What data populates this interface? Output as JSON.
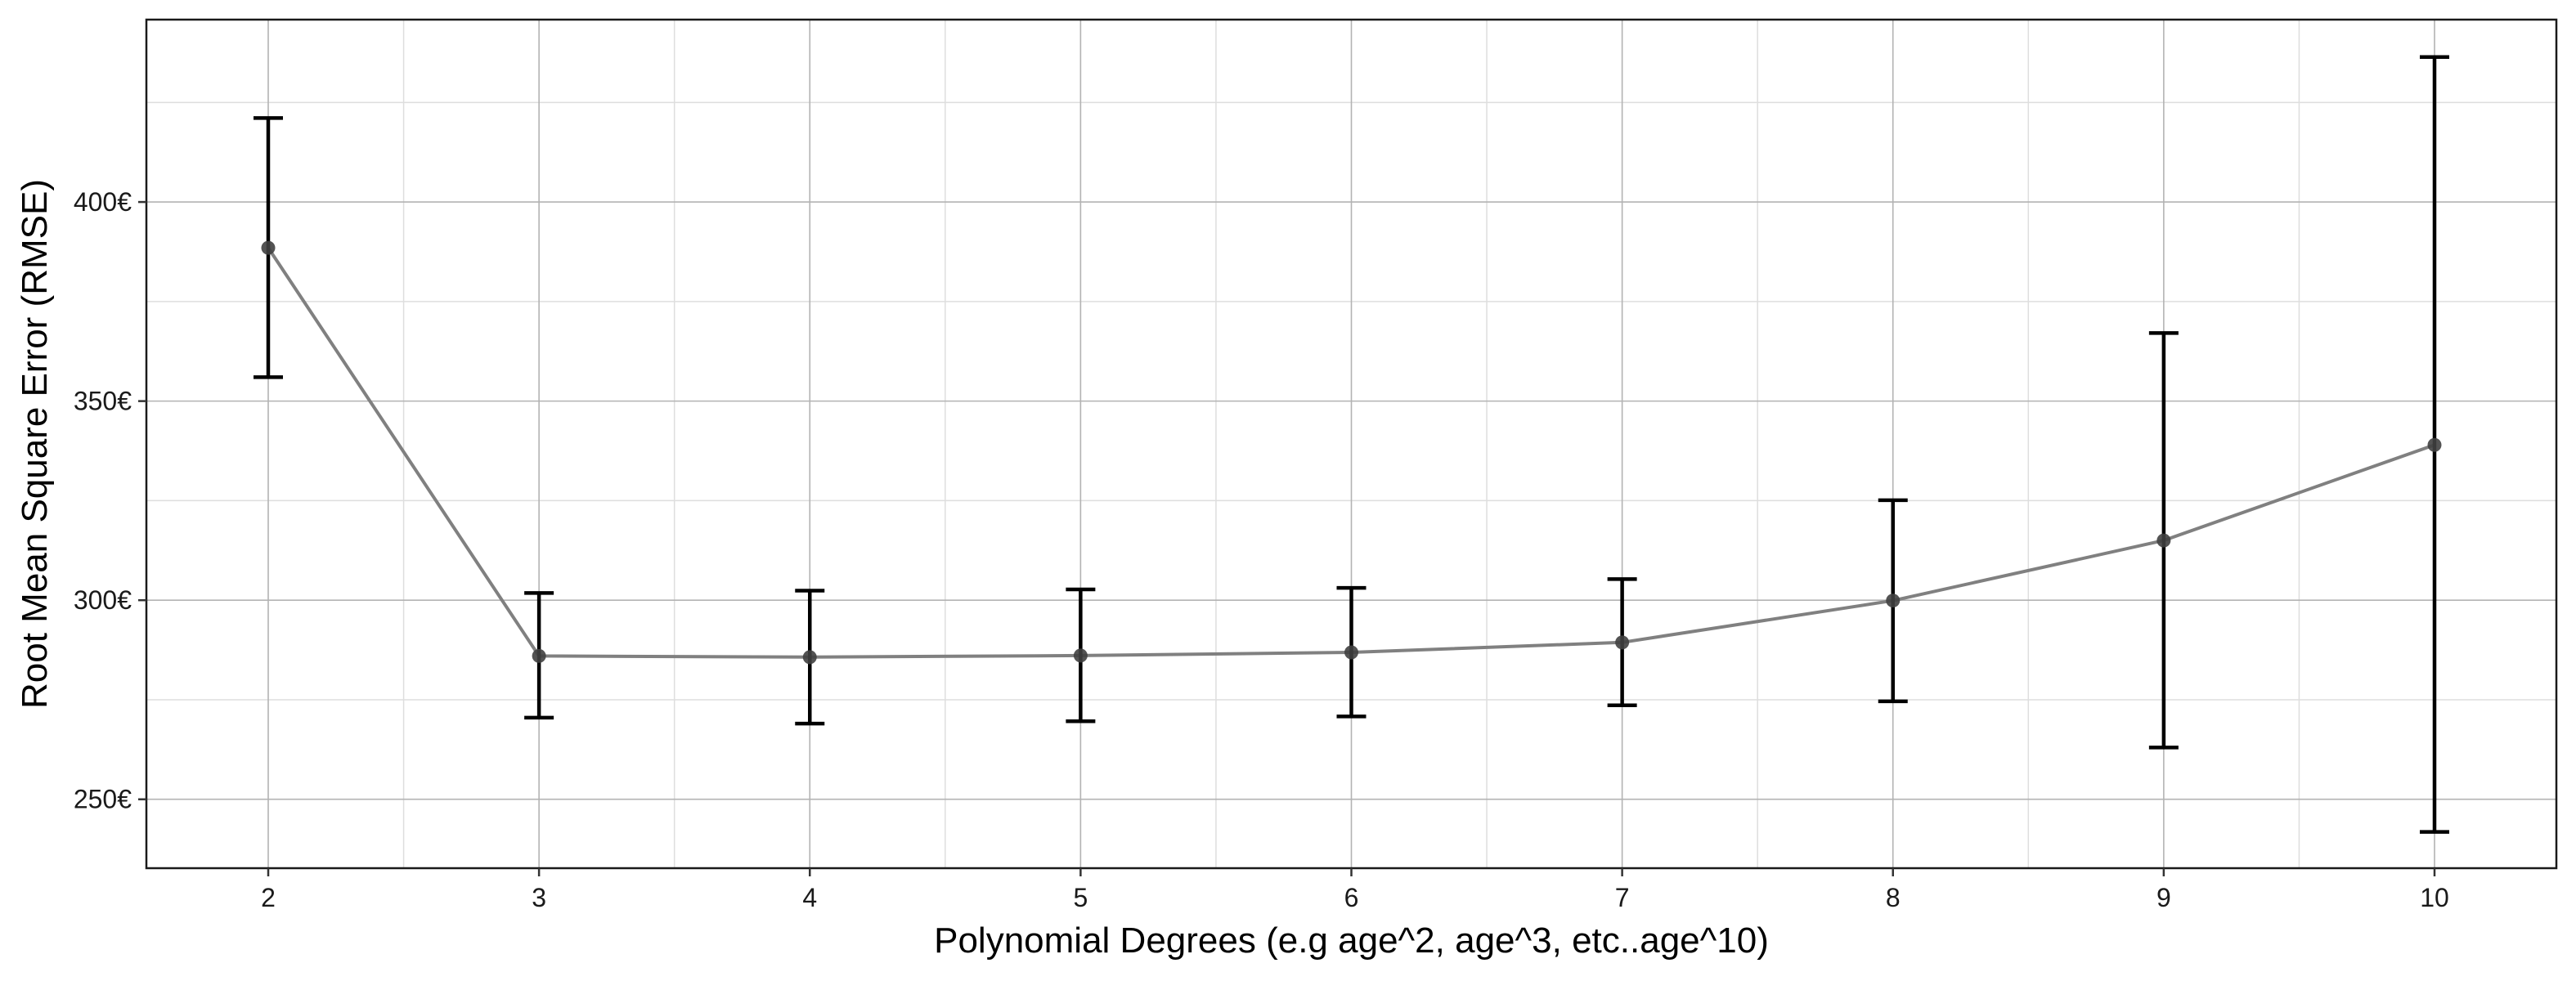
{
  "chart_data": {
    "type": "line",
    "title": "",
    "xlabel": "Polynomial Degrees (e.g age^2, age^3, etc..age^10)",
    "ylabel": "Root Mean Square Error (RMSE)",
    "x": [
      2,
      3,
      4,
      5,
      6,
      7,
      8,
      9,
      10
    ],
    "series": [
      {
        "y": [
          388.5,
          286.0,
          285.7,
          286.1,
          286.9,
          289.4,
          299.9,
          315.0,
          339.0
        ],
        "lower": [
          356.0,
          270.5,
          269.0,
          269.6,
          270.8,
          273.6,
          274.6,
          263.0,
          241.8
        ],
        "upper": [
          421.1,
          301.8,
          302.4,
          302.7,
          303.1,
          305.3,
          325.1,
          367.1,
          436.4
        ]
      }
    ],
    "xlim": [
      1.55,
      10.45
    ],
    "ylim": [
      232.7,
      445.8
    ],
    "x_ticks": [
      {
        "value": 2,
        "label": "2"
      },
      {
        "value": 3,
        "label": "3"
      },
      {
        "value": 4,
        "label": "4"
      },
      {
        "value": 5,
        "label": "5"
      },
      {
        "value": 6,
        "label": "6"
      },
      {
        "value": 7,
        "label": "7"
      },
      {
        "value": 8,
        "label": "8"
      },
      {
        "value": 9,
        "label": "9"
      },
      {
        "value": 10,
        "label": "10"
      }
    ],
    "y_ticks": [
      {
        "value": 250,
        "label": "250€"
      },
      {
        "value": 300,
        "label": "300€"
      },
      {
        "value": 350,
        "label": "350€"
      },
      {
        "value": 400,
        "label": "400€"
      }
    ],
    "grid": true,
    "legend": "none",
    "colors": {
      "line": "#808080",
      "point": "#404040",
      "errorbar": "#000000",
      "grid_major": "#b3b3b3",
      "grid_minor": "#dedede",
      "border": "#1a1a1a"
    }
  }
}
